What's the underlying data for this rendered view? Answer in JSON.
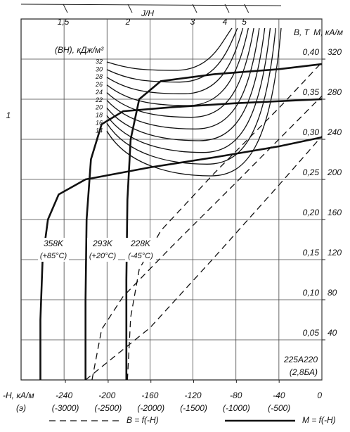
{
  "chart_data": {
    "type": "line",
    "xlabel": "-H, кА/м",
    "ylabel": "B, T",
    "y2label": "M, кА/м",
    "toplabel": "J/H",
    "panel_label": "(э)",
    "corner_label": "1",
    "bh_label": "(ВН), кДж/м³",
    "annotation": [
      "225А220",
      "(2,8БА)"
    ],
    "xlim": [
      -280,
      0
    ],
    "xticks": [
      -240,
      -200,
      -160,
      -120,
      -80,
      -40,
      0
    ],
    "x2lim": [
      -3518.6,
      0
    ],
    "x2ticks": [
      {
        "value": -3000,
        "label": "(-3000)"
      },
      {
        "value": -2500,
        "label": "(-2500)"
      },
      {
        "value": -2000,
        "label": "(-2000)"
      },
      {
        "value": -1500,
        "label": "(-1500)"
      },
      {
        "value": -1000,
        "label": "(-1000)"
      },
      {
        "value": -500,
        "label": "(-500)"
      }
    ],
    "ylim": [
      0,
      0.45
    ],
    "yticks": [
      {
        "value": 0.05,
        "label": "0,05"
      },
      {
        "value": 0.1,
        "label": "0,10"
      },
      {
        "value": 0.15,
        "label": "0,15"
      },
      {
        "value": 0.2,
        "label": "0,20"
      },
      {
        "value": 0.25,
        "label": "0,25"
      },
      {
        "value": 0.3,
        "label": "0,30"
      },
      {
        "value": 0.35,
        "label": "0,35"
      },
      {
        "value": 0.4,
        "label": "0,40"
      }
    ],
    "y2lim": [
      0,
      360
    ],
    "y2ticks": [
      40,
      80,
      120,
      160,
      200,
      240,
      280,
      320
    ],
    "topticks": [
      {
        "value": 1.5,
        "label": "1,5"
      },
      2,
      3,
      4,
      5
    ],
    "grid": true,
    "bh_levels": [
      32,
      30,
      28,
      26,
      24,
      22,
      20,
      18,
      16,
      14
    ],
    "temperatures": [
      {
        "kelvin": "358K",
        "celsius": "(+85°C)"
      },
      {
        "kelvin": "293K",
        "celsius": "(+20°C)"
      },
      {
        "kelvin": "228K",
        "celsius": "(-45°C)"
      }
    ],
    "groups": [
      {
        "name": "B = f(-H)",
        "style": "dashed",
        "color": "#111",
        "curves": [
          {
            "x": [
              -220,
              -160,
              -100,
              -40,
              0
            ],
            "values": [
              0,
              0.065,
              0.153,
              0.243,
              0.304
            ]
          },
          {
            "x": [
              -214,
              -205,
              -185,
              -140,
              -80,
              0
            ],
            "values": [
              0,
              0.063,
              0.104,
              0.166,
              0.246,
              0.354
            ]
          },
          {
            "x": [
              -181,
              -178,
              -170,
              -150,
              -100,
              -40,
              0
            ],
            "values": [
              0,
              0.078,
              0.138,
              0.186,
              0.258,
              0.339,
              0.396
            ]
          }
        ]
      },
      {
        "name": "M = f(-H)",
        "style": "solid",
        "axis": "y2",
        "color": "#111",
        "curves": [
          {
            "x": [
              -262,
              -262,
              -260,
              -255,
              -245,
              -220,
              -160,
              -100,
              -40,
              0
            ],
            "values": [
              0,
              60,
              120,
              160,
              185,
              200,
              212,
              222,
              233,
              242
            ]
          },
          {
            "x": [
              -220,
              -220,
              -219,
              -215,
              -205,
              -185,
              -140,
              -80,
              0
            ],
            "values": [
              0,
              80,
              160,
              220,
              255,
              268,
              272,
              276,
              280
            ]
          },
          {
            "x": [
              -182,
              -182,
              -181,
              -178,
              -170,
              -150,
              -100,
              -40,
              0
            ],
            "values": [
              0,
              100,
              180,
              240,
              280,
              298,
              305,
              310,
              315
            ]
          }
        ]
      }
    ]
  }
}
